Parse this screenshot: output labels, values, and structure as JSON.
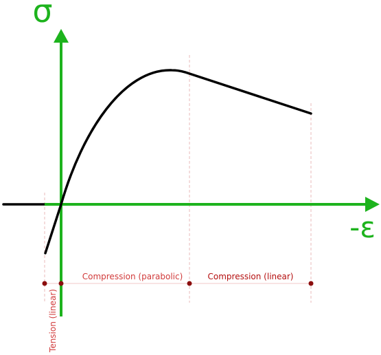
{
  "axes": {
    "y_label": "σ",
    "x_label": "-ε"
  },
  "regions": {
    "tension": "Tension (linear)",
    "compression_parabolic": "Compression (parabolic)",
    "compression_linear": "Compression (linear)"
  },
  "colors": {
    "axis": "#1db31d",
    "curve": "#000000",
    "label_light": "#d13a3a",
    "label_dark": "#b40e0e",
    "dot": "#8b0e0e"
  }
}
